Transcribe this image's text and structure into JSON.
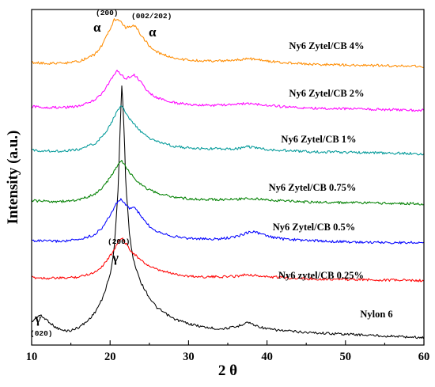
{
  "chart_data": {
    "type": "line",
    "xlabel": "2 θ",
    "ylabel": "Intensity (a.u.)",
    "xlim": [
      10,
      60
    ],
    "xticks": [
      "10",
      "20",
      "30",
      "40",
      "50",
      "60"
    ],
    "yticks_shown": false,
    "grid": false,
    "legend": "none",
    "series": [
      {
        "name": "Nylon 6",
        "color": "#000000",
        "x": [
          10,
          11,
          12,
          13,
          14,
          15,
          16,
          17,
          18,
          19,
          20,
          20.5,
          21,
          21.3,
          21.5,
          21.8,
          22,
          22.5,
          23,
          24,
          25,
          26,
          28,
          30,
          32,
          34,
          36,
          37.5,
          38.5,
          40,
          42,
          45,
          50,
          55,
          60
        ],
        "y": [
          1.1,
          1.5,
          1.2,
          0.8,
          0.6,
          0.6,
          0.8,
          1.1,
          1.6,
          2.4,
          3.8,
          5.2,
          8.5,
          12.5,
          14.8,
          12.0,
          9.0,
          6.0,
          4.6,
          3.3,
          2.5,
          1.9,
          1.3,
          1.0,
          0.8,
          0.7,
          0.8,
          1.1,
          0.9,
          0.7,
          0.6,
          0.5,
          0.4,
          0.3,
          0.2
        ]
      },
      {
        "name": "Ny6 zytel/CB 0.25%",
        "color": "#ff0000",
        "x": [
          10,
          12,
          14,
          16,
          18,
          19,
          20,
          20.5,
          21,
          21.5,
          22,
          22.5,
          23,
          24,
          25,
          26,
          28,
          30,
          32,
          34,
          36,
          37.5,
          38.5,
          40,
          42,
          45,
          50,
          55,
          60
        ],
        "y": [
          0.8,
          0.7,
          0.7,
          0.9,
          1.6,
          2.6,
          4.2,
          5.2,
          6.4,
          7.0,
          6.2,
          5.3,
          4.6,
          3.4,
          2.6,
          2.0,
          1.4,
          1.0,
          0.9,
          0.9,
          1.0,
          1.3,
          1.1,
          0.9,
          0.8,
          0.6,
          0.5,
          0.4,
          0.3
        ]
      },
      {
        "name": "Ny6 Zytel/CB 0.5%",
        "color": "#0000ff",
        "x": [
          10,
          12,
          14,
          16,
          18,
          19,
          20,
          20.5,
          21,
          21.5,
          22,
          22.5,
          23,
          23.5,
          24,
          25,
          26,
          28,
          30,
          32,
          34,
          36,
          37,
          38,
          39,
          40,
          42,
          45,
          50,
          55,
          60
        ],
        "y": [
          0.8,
          0.7,
          0.7,
          0.9,
          1.6,
          2.6,
          4.3,
          5.4,
          6.3,
          6.6,
          5.7,
          5.3,
          5.5,
          4.9,
          4.1,
          2.8,
          2.1,
          1.4,
          1.1,
          1.0,
          1.0,
          1.3,
          1.7,
          2.1,
          1.8,
          1.4,
          1.0,
          0.8,
          0.6,
          0.5,
          0.5
        ]
      },
      {
        "name": "Ny6 Zytel/CB 0.75%",
        "color": "#008000",
        "x": [
          10,
          12,
          14,
          16,
          18,
          19,
          20,
          20.5,
          21,
          21.5,
          22,
          22.5,
          23,
          24,
          25,
          26,
          28,
          30,
          32,
          34,
          36,
          37.5,
          38.5,
          40,
          42,
          45,
          50,
          55,
          60
        ],
        "y": [
          0.8,
          0.7,
          0.7,
          0.9,
          1.8,
          2.8,
          4.4,
          5.5,
          6.5,
          7.0,
          6.2,
          5.2,
          4.5,
          3.3,
          2.5,
          2.0,
          1.4,
          1.1,
          1.0,
          1.0,
          1.0,
          1.2,
          1.1,
          0.9,
          0.8,
          0.6,
          0.5,
          0.4,
          0.3
        ]
      },
      {
        "name": "Ny6 Zytel/CB 1%",
        "color": "#009999",
        "x": [
          10,
          12,
          14,
          16,
          18,
          19,
          20,
          20.5,
          21,
          21.5,
          22,
          22.5,
          23,
          24,
          25,
          26,
          28,
          30,
          32,
          34,
          36,
          37.5,
          38.5,
          40,
          42,
          45,
          50,
          55,
          60
        ],
        "y": [
          0.8,
          0.7,
          0.7,
          0.9,
          1.7,
          2.7,
          4.3,
          5.4,
          6.5,
          7.0,
          6.1,
          5.2,
          4.5,
          3.3,
          2.5,
          2.0,
          1.4,
          1.1,
          1.0,
          1.0,
          1.0,
          1.3,
          1.2,
          0.9,
          0.8,
          0.6,
          0.5,
          0.4,
          0.3
        ]
      },
      {
        "name": "Ny6 Zytel/CB 2%",
        "color": "#ff00ff",
        "x": [
          10,
          12,
          14,
          16,
          18,
          19,
          20,
          20.5,
          21,
          21.5,
          22,
          22.5,
          23,
          23.5,
          24,
          25,
          26,
          28,
          30,
          32,
          34,
          36,
          37.5,
          38.5,
          40,
          42,
          45,
          50,
          55,
          60
        ],
        "y": [
          0.8,
          0.7,
          0.7,
          0.9,
          1.7,
          2.7,
          4.3,
          5.4,
          5.9,
          5.2,
          4.7,
          5.0,
          5.3,
          4.8,
          4.1,
          2.7,
          2.0,
          1.4,
          1.1,
          1.0,
          1.0,
          1.1,
          1.3,
          1.2,
          1.0,
          0.8,
          0.6,
          0.5,
          0.4,
          0.3
        ]
      },
      {
        "name": "Ny6 Zytel/CB 4%",
        "color": "#ff8c00",
        "x": [
          10,
          12,
          14,
          16,
          18,
          19,
          20,
          20.5,
          21,
          21.5,
          22,
          22.5,
          23,
          23.5,
          24,
          25,
          26,
          28,
          30,
          32,
          34,
          36,
          37.5,
          38.5,
          40,
          42,
          45,
          50,
          55,
          60
        ],
        "y": [
          0.8,
          0.7,
          0.7,
          0.9,
          1.8,
          3.0,
          5.0,
          6.2,
          6.4,
          5.7,
          5.2,
          5.3,
          5.5,
          5.0,
          4.2,
          2.9,
          2.1,
          1.4,
          1.1,
          1.0,
          1.0,
          1.1,
          1.3,
          1.2,
          1.0,
          0.8,
          0.6,
          0.5,
          0.4,
          0.3
        ]
      }
    ],
    "annotations": [
      {
        "symbol": "γ",
        "index": "(020)"
      },
      {
        "symbol": "γ",
        "index": "(200)"
      },
      {
        "symbol": "α",
        "index": "(200)"
      },
      {
        "symbol": "α",
        "index": "(002/202)"
      }
    ]
  }
}
